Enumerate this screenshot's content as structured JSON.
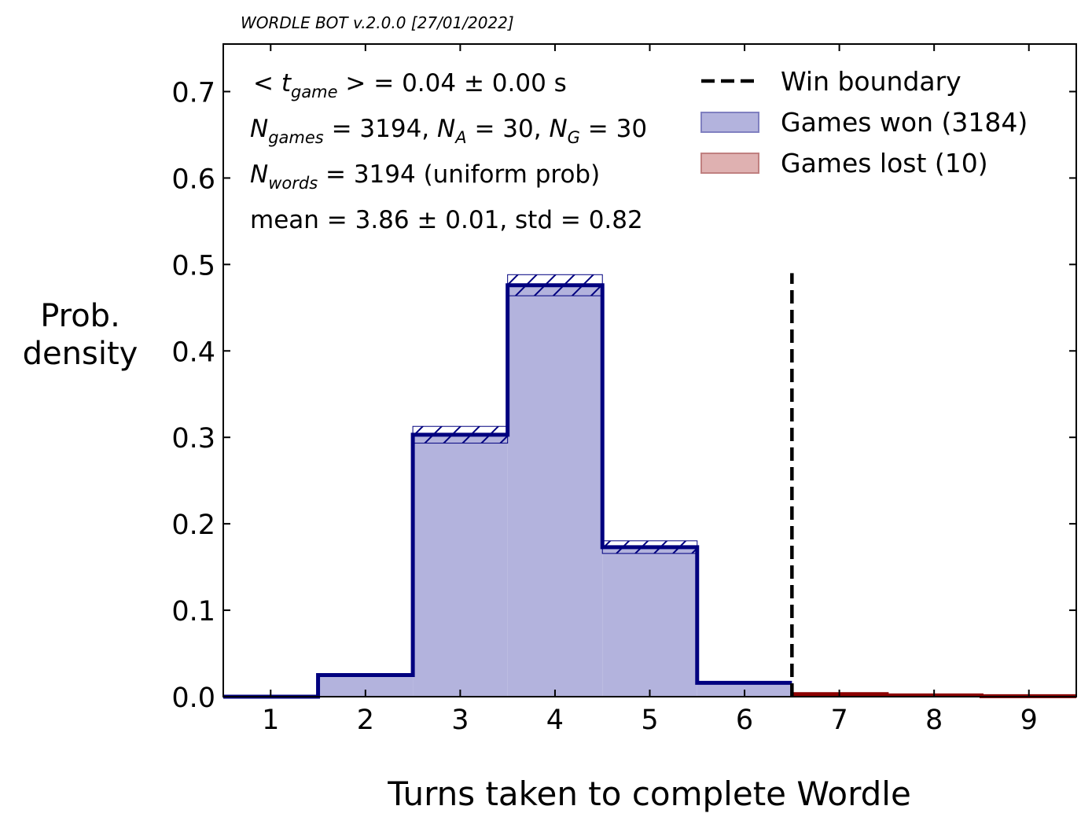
{
  "header_text": "WORDLE BOT v.2.0.0  [27/01/2022]",
  "chart_data": {
    "type": "histogram-step",
    "xlabel": "Turns taken to complete Wordle",
    "ylabel_line1": "Prob.",
    "ylabel_line2": "density",
    "xlim": [
      0.5,
      9.5
    ],
    "ylim": [
      0.0,
      0.755
    ],
    "xticks": [
      1,
      2,
      3,
      4,
      5,
      6,
      7,
      8,
      9
    ],
    "xtick_labels": [
      "1",
      "2",
      "3",
      "4",
      "5",
      "6",
      "7",
      "8",
      "9"
    ],
    "yticks": [
      0.0,
      0.1,
      0.2,
      0.3,
      0.4,
      0.5,
      0.6,
      0.7
    ],
    "ytick_labels": [
      "0.0",
      "0.1",
      "0.2",
      "0.3",
      "0.4",
      "0.5",
      "0.6",
      "0.7"
    ],
    "grid": false,
    "legend_position": "top-right",
    "win_boundary_x": 6.5,
    "win_boundary_ymax": 0.49,
    "series": [
      {
        "name": "Games won (3184)",
        "color": "#00007f",
        "fill": "#b3b3dd",
        "bin_edges": [
          0.5,
          1.5,
          2.5,
          3.5,
          4.5,
          5.5,
          6.5
        ],
        "values": [
          0.0,
          0.025,
          0.303,
          0.476,
          0.173,
          0.016
        ],
        "errors": [
          0.0,
          0.0,
          0.0097,
          0.0122,
          0.0073,
          0.0
        ],
        "hatched": [
          false,
          false,
          true,
          true,
          true,
          false
        ]
      },
      {
        "name": "Games lost (10)",
        "color": "#8b0000",
        "fill": "#dfb1b1",
        "bin_edges": [
          6.5,
          7.5,
          8.5,
          9.5
        ],
        "values": [
          0.003,
          0.0015,
          0.0006
        ]
      }
    ],
    "legend": [
      {
        "label": "Win boundary",
        "style": "dashed-line",
        "color": "#000000"
      },
      {
        "label": "Games won (3184)",
        "style": "patch",
        "color": "#b3b3dd",
        "edge": "#8080c0"
      },
      {
        "label": "Games lost (10)",
        "style": "patch",
        "color": "#dfb1b1",
        "edge": "#c08080"
      }
    ]
  },
  "annotations": {
    "line1_lhs": "< t",
    "line1_sub": "game",
    "line1_rhs": " > = 0.04 ± 0.00 s",
    "line2_a": "N",
    "line2_a_sub": "games",
    "line2_a_val": " = 3194,  ",
    "line2_b": "N",
    "line2_b_sub": "A",
    "line2_b_val": " = 30,  ",
    "line2_c": "N",
    "line2_c_sub": "G",
    "line2_c_val": " = 30",
    "line3_a": "N",
    "line3_a_sub": "words",
    "line3_val": " = 3194 (uniform prob)",
    "line4": "mean = 3.86 ± 0.01, std = 0.82"
  }
}
